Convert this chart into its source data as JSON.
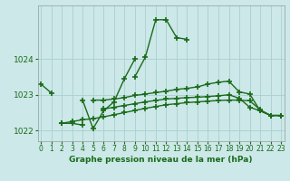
{
  "title": "Graphe pression niveau de la mer (hPa)",
  "x_hours": [
    0,
    1,
    2,
    3,
    4,
    5,
    6,
    7,
    8,
    9,
    10,
    11,
    12,
    13,
    14,
    15,
    16,
    17,
    18,
    19,
    20,
    21,
    22,
    23
  ],
  "series": [
    {
      "name": "line1_top",
      "y": [
        1023.3,
        1023.05,
        null,
        null,
        null,
        null,
        null,
        null,
        null,
        1023.5,
        1024.05,
        1025.1,
        1025.1,
        1024.6,
        1024.55,
        null,
        null,
        null,
        null,
        null,
        null,
        null,
        null,
        null
      ]
    },
    {
      "name": "line2_vshape",
      "y": [
        null,
        null,
        null,
        null,
        1022.85,
        1022.05,
        1022.55,
        1022.8,
        1023.45,
        1024.0,
        null,
        null,
        null,
        null,
        null,
        null,
        null,
        null,
        null,
        null,
        null,
        null,
        null,
        null
      ]
    },
    {
      "name": "line3_upper_flat",
      "y": [
        null,
        null,
        null,
        null,
        null,
        1022.85,
        1022.85,
        1022.88,
        1022.92,
        1022.98,
        1023.02,
        1023.06,
        1023.1,
        1023.15,
        1023.18,
        1023.22,
        1023.3,
        1023.35,
        1023.38,
        1023.08,
        1023.02,
        1022.55,
        1022.42,
        1022.42
      ]
    },
    {
      "name": "line4_short",
      "y": [
        null,
        null,
        1022.2,
        1022.2,
        1022.15,
        null,
        null,
        null,
        null,
        null,
        null,
        null,
        null,
        null,
        null,
        null,
        null,
        null,
        null,
        null,
        null,
        null,
        null,
        null
      ]
    },
    {
      "name": "line5_lower_flat",
      "y": [
        null,
        null,
        1022.2,
        1022.25,
        1022.3,
        1022.33,
        1022.38,
        1022.44,
        1022.5,
        1022.56,
        1022.62,
        1022.67,
        1022.72,
        1022.75,
        1022.78,
        1022.8,
        1022.82,
        1022.84,
        1022.85,
        1022.85,
        1022.83,
        1022.58,
        1022.42,
        1022.42
      ]
    },
    {
      "name": "line6_mid_flat",
      "y": [
        null,
        null,
        null,
        null,
        null,
        null,
        1022.6,
        1022.65,
        1022.7,
        1022.75,
        1022.8,
        1022.84,
        1022.88,
        1022.9,
        1022.92,
        1022.93,
        1022.95,
        1022.97,
        1023.0,
        1022.9,
        1022.65,
        1022.55,
        1022.42,
        1022.42
      ]
    }
  ],
  "ylim": [
    1021.7,
    1025.5
  ],
  "yticks": [
    1022,
    1023,
    1024
  ],
  "xlim": [
    -0.3,
    23.3
  ],
  "xticks": [
    0,
    1,
    2,
    3,
    4,
    5,
    6,
    7,
    8,
    9,
    10,
    11,
    12,
    13,
    14,
    15,
    16,
    17,
    18,
    19,
    20,
    21,
    22,
    23
  ],
  "line_color": "#1a6b1a",
  "bg_color": "#cce8e8",
  "grid_color": "#aacece",
  "marker": "+",
  "markersize": 4,
  "markeredgewidth": 1.2,
  "linewidth": 1.0,
  "title_fontsize": 6.5,
  "tick_fontsize": 5.5,
  "ytick_fontsize": 6.5
}
